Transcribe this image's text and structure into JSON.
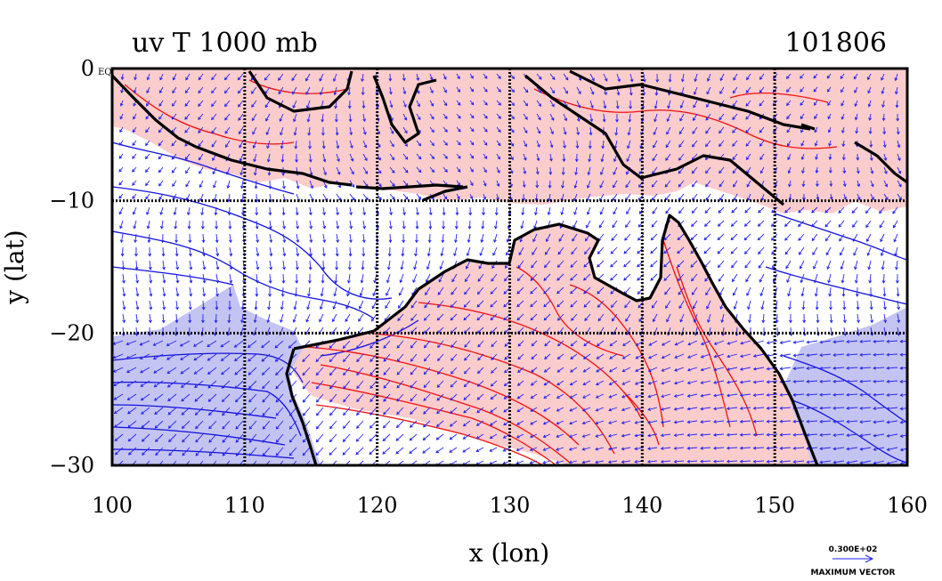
{
  "title_left": "uv T 1000 mb",
  "title_right": "101806",
  "chart_data": {
    "type": "vector-field contour map",
    "xlabel": "x (lon)",
    "ylabel": "y (lat)",
    "xlim": [
      100,
      160
    ],
    "ylim": [
      -30,
      0
    ],
    "x_ticks": [
      "100",
      "110",
      "120",
      "130",
      "140",
      "150",
      "160"
    ],
    "y_ticks": [
      "0",
      "−10",
      "−20",
      "−30"
    ],
    "y_tick_suffix": "EQ",
    "x_gridlines": [
      110,
      120,
      130,
      140,
      150
    ],
    "y_gridlines": [
      -10,
      -20
    ],
    "grid": true,
    "vector_legend_value": "0.300E+02",
    "vector_legend_label": "MAXIMUM VECTOR",
    "colors": {
      "warm_fill": "#fbcccc",
      "cool_fill": "#c4c4f2",
      "warm_contour": "#ee1111",
      "cool_contour": "#1111dd",
      "vectors": "#2222ee",
      "coastline": "#000000"
    }
  }
}
